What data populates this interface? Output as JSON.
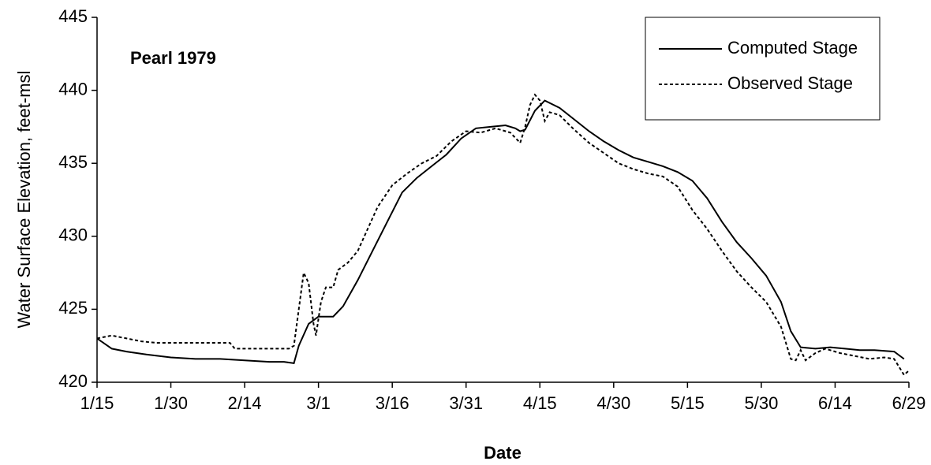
{
  "chart_data": {
    "type": "line",
    "annotation": "Pearl 1979",
    "x_label": "Date",
    "y_label": "Water Surface Elevation, feet-msl",
    "xlim": [
      0,
      165
    ],
    "xticks": [
      {
        "value": 0,
        "label": "1/15"
      },
      {
        "value": 15,
        "label": "1/30"
      },
      {
        "value": 30,
        "label": "2/14"
      },
      {
        "value": 45,
        "label": "3/1"
      },
      {
        "value": 60,
        "label": "3/16"
      },
      {
        "value": 75,
        "label": "3/31"
      },
      {
        "value": 90,
        "label": "4/15"
      },
      {
        "value": 105,
        "label": "4/30"
      },
      {
        "value": 120,
        "label": "5/15"
      },
      {
        "value": 135,
        "label": "5/30"
      },
      {
        "value": 150,
        "label": "6/14"
      },
      {
        "value": 165,
        "label": "6/29"
      }
    ],
    "ylim": [
      420,
      445
    ],
    "yticks": [
      420,
      425,
      430,
      435,
      440,
      445
    ],
    "legend": "top-right",
    "series": [
      {
        "name": "Computed Stage",
        "color": "#000000",
        "dash": "solid",
        "x": [
          0,
          3,
          6,
          10,
          15,
          20,
          25,
          30,
          35,
          38,
          40,
          41,
          43,
          45,
          48,
          50,
          53,
          56,
          59,
          62,
          65,
          68,
          71,
          74,
          77,
          80,
          83,
          85,
          86,
          87,
          89,
          91,
          94,
          97,
          100,
          103,
          106,
          109,
          112,
          115,
          118,
          121,
          124,
          127,
          130,
          133,
          136,
          139,
          141,
          143,
          146,
          149,
          152,
          155,
          158,
          162,
          164
        ],
        "values": [
          423.0,
          422.3,
          422.1,
          421.9,
          421.7,
          421.6,
          421.6,
          421.5,
          421.4,
          421.4,
          421.3,
          422.5,
          424.0,
          424.5,
          424.5,
          425.2,
          427.0,
          429.0,
          431.0,
          433.0,
          434.0,
          434.8,
          435.6,
          436.7,
          437.4,
          437.5,
          437.6,
          437.4,
          437.2,
          437.3,
          438.6,
          439.3,
          438.8,
          438.0,
          437.2,
          436.5,
          435.9,
          435.4,
          435.1,
          434.8,
          434.4,
          433.8,
          432.6,
          431.0,
          429.6,
          428.5,
          427.3,
          425.5,
          423.5,
          422.4,
          422.3,
          422.4,
          422.3,
          422.2,
          422.2,
          422.1,
          421.6
        ]
      },
      {
        "name": "Observed Stage",
        "color": "#000000",
        "dash": "dotted",
        "x": [
          0,
          3,
          6,
          9,
          12,
          20,
          27,
          28,
          35,
          39,
          40,
          41,
          42,
          43,
          44,
          44.5,
          45.5,
          46.5,
          48,
          49,
          51,
          53,
          55,
          57,
          60,
          63,
          66,
          69,
          72,
          75,
          78,
          81,
          84,
          86,
          87,
          88,
          89,
          90,
          91,
          92,
          94,
          97,
          100,
          103,
          106,
          109,
          112,
          115,
          118,
          121,
          124,
          127,
          130,
          133,
          136,
          139,
          141,
          142,
          143,
          144,
          146,
          148,
          151,
          154,
          157,
          160,
          162,
          164,
          165
        ],
        "values": [
          423.0,
          423.2,
          423.0,
          422.8,
          422.7,
          422.7,
          422.7,
          422.3,
          422.3,
          422.3,
          422.5,
          425.0,
          427.5,
          426.8,
          424.0,
          423.2,
          425.5,
          426.5,
          426.5,
          427.7,
          428.2,
          429.0,
          430.5,
          432.0,
          433.5,
          434.3,
          435.0,
          435.5,
          436.5,
          437.2,
          437.1,
          437.4,
          437.1,
          436.4,
          437.5,
          439.0,
          439.7,
          439.3,
          437.9,
          438.5,
          438.3,
          437.3,
          436.4,
          435.7,
          435.0,
          434.6,
          434.3,
          434.1,
          433.4,
          431.8,
          430.5,
          429.0,
          427.6,
          426.5,
          425.5,
          423.8,
          421.6,
          421.5,
          422.2,
          421.5,
          422.0,
          422.3,
          422.0,
          421.8,
          421.6,
          421.7,
          421.6,
          420.5,
          420.8
        ]
      }
    ]
  }
}
